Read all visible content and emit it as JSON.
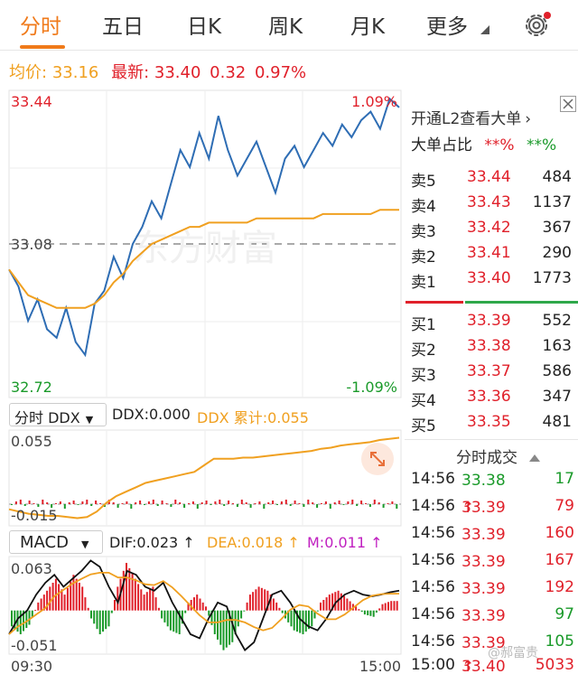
{
  "tabs": [
    {
      "label": "分时",
      "active": true
    },
    {
      "label": "五日"
    },
    {
      "label": "日K"
    },
    {
      "label": "周K"
    },
    {
      "label": "月K"
    },
    {
      "label": "更多"
    }
  ],
  "quote": {
    "avg_label": "均价:",
    "avg_value": "33.16",
    "last_label": "最新:",
    "last_value": "33.40",
    "change": "0.32",
    "change_pct": "0.97%"
  },
  "main_chart": {
    "y_max": "33.44",
    "y_mid": "33.08",
    "y_min": "32.72",
    "pct_max": "1.09%",
    "pct_min": "-1.09%",
    "watermark": "东方财富"
  },
  "order_book": {
    "header": "开通L2查看大单",
    "big_order_label": "大单占比",
    "big_buy": "**%",
    "big_sell": "**%",
    "asks": [
      {
        "label": "卖5",
        "price": "33.44",
        "volume": "484"
      },
      {
        "label": "卖4",
        "price": "33.43",
        "volume": "1137"
      },
      {
        "label": "卖3",
        "price": "33.42",
        "volume": "367"
      },
      {
        "label": "卖2",
        "price": "33.41",
        "volume": "290"
      },
      {
        "label": "卖1",
        "price": "33.40",
        "volume": "1773"
      }
    ],
    "bids": [
      {
        "label": "买1",
        "price": "33.39",
        "volume": "552"
      },
      {
        "label": "买2",
        "price": "33.38",
        "volume": "163"
      },
      {
        "label": "买3",
        "price": "33.37",
        "volume": "586"
      },
      {
        "label": "买4",
        "price": "33.36",
        "volume": "347"
      },
      {
        "label": "买5",
        "price": "33.35",
        "volume": "481"
      }
    ]
  },
  "trades": {
    "title": "分时成交",
    "rows": [
      {
        "time": "14:56",
        "price": "33.38",
        "arrow": "",
        "volume": "17",
        "side": "sell"
      },
      {
        "time": "14:56",
        "price": "33.39",
        "arrow": "↑",
        "volume": "79",
        "side": "buy"
      },
      {
        "time": "14:56",
        "price": "33.39",
        "arrow": "",
        "volume": "160",
        "side": "buy"
      },
      {
        "time": "14:56",
        "price": "33.39",
        "arrow": "",
        "volume": "167",
        "side": "buy"
      },
      {
        "time": "14:56",
        "price": "33.39",
        "arrow": "",
        "volume": "192",
        "side": "buy"
      },
      {
        "time": "14:56",
        "price": "33.39",
        "arrow": "",
        "volume": "97",
        "side": "sell"
      },
      {
        "time": "14:56",
        "price": "33.39",
        "arrow": "",
        "volume": "105",
        "side": "sell"
      },
      {
        "time": "15:00",
        "price": "33.40",
        "arrow": "↑",
        "volume": "5033",
        "side": "buy"
      }
    ]
  },
  "ddx": {
    "selector": "分时 DDX",
    "ddx_label": "DDX:0.000",
    "ddx_cum_label": "DDX 累计:0.055",
    "y_max": "0.055",
    "y_min": "-0.015"
  },
  "macd": {
    "selector": "MACD",
    "dif_label": "DIF:0.023 ↑",
    "dea_label": "DEA:0.018 ↑",
    "m_label": "M:0.011 ↑",
    "y_max": "0.063",
    "y_min": "-0.051"
  },
  "time_axis": {
    "start": "09:30",
    "end": "15:00"
  },
  "watermark_user": "@郝富贵",
  "colors": {
    "accent": "#f07a1a",
    "up": "#e0202a",
    "down": "#1a9a2a",
    "price_line": "#2e6db4",
    "avg_line": "#f0a020"
  },
  "chart_data": {
    "type": "line",
    "title": "",
    "ylim": [
      32.72,
      33.44
    ],
    "reference": 33.08,
    "x_range": [
      "09:30",
      "15:00"
    ],
    "series": [
      {
        "values": [
          33.02,
          32.98,
          32.9,
          32.95,
          32.88,
          32.86,
          32.93,
          32.85,
          32.82,
          32.94,
          32.97,
          33.05,
          33.0,
          33.08,
          33.12,
          33.18,
          33.14,
          33.22,
          33.3,
          33.26,
          33.34,
          33.28,
          33.38,
          33.3,
          33.24,
          33.28,
          33.32,
          33.26,
          33.2,
          33.28,
          33.31,
          33.26,
          33.3,
          33.34,
          33.31,
          33.36,
          33.33,
          33.37,
          33.39,
          33.35,
          33.42,
          33.4
        ]
      },
      {
        "values": [
          33.02,
          32.99,
          32.96,
          32.95,
          32.94,
          32.93,
          32.93,
          32.93,
          32.93,
          32.94,
          32.96,
          32.99,
          33.01,
          33.04,
          33.06,
          33.08,
          33.09,
          33.1,
          33.11,
          33.12,
          33.12,
          33.13,
          33.13,
          33.13,
          33.13,
          33.13,
          33.14,
          33.14,
          33.14,
          33.14,
          33.14,
          33.14,
          33.14,
          33.15,
          33.15,
          33.15,
          33.15,
          33.15,
          33.15,
          33.16,
          33.16,
          33.16
        ]
      }
    ]
  }
}
